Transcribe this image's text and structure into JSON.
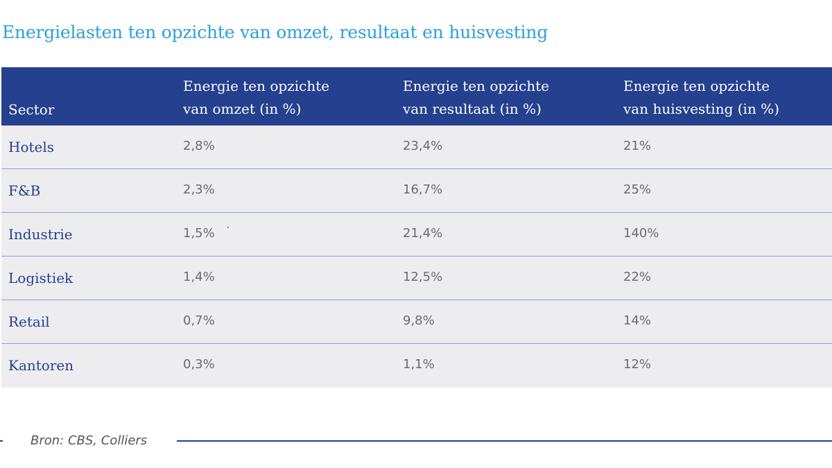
{
  "title": "Energielasten ten opzichte van omzet, resultaat en huisvesting",
  "chart_data": {
    "type": "table",
    "title": "Energielasten ten opzichte van omzet, resultaat en huisvesting",
    "columns": [
      {
        "line1": "",
        "line2": "Sector"
      },
      {
        "line1": "Energie ten opzichte",
        "line2": "van omzet (in %)"
      },
      {
        "line1": "Energie ten opzichte",
        "line2": "van resultaat (in %)"
      },
      {
        "line1": "Energie ten opzichte",
        "line2": "van huisvesting (in %)"
      }
    ],
    "rows": [
      {
        "sector": "Hotels",
        "omzet": "2,8%",
        "resultaat": "23,4%",
        "huisvesting": "21%"
      },
      {
        "sector": "F&B",
        "omzet": "2,3%",
        "resultaat": "16,7%",
        "huisvesting": "25%"
      },
      {
        "sector": "Industrie",
        "omzet": "1,5%",
        "resultaat": "21,4%",
        "huisvesting": "140%"
      },
      {
        "sector": "Logistiek",
        "omzet": "1,4%",
        "resultaat": "12,5%",
        "huisvesting": "22%"
      },
      {
        "sector": "Retail",
        "omzet": "0,7%",
        "resultaat": "9,8%",
        "huisvesting": "14%"
      },
      {
        "sector": "Kantoren",
        "omzet": "0,3%",
        "resultaat": "1,1%",
        "huisvesting": "12%"
      }
    ]
  },
  "source": "Bron: CBS, Colliers",
  "colors": {
    "header_bg": "#24408e",
    "title": "#2aa0d8",
    "row_bg": "#ededf0",
    "sector_text": "#24408e",
    "value_text": "#6b6b6b"
  }
}
